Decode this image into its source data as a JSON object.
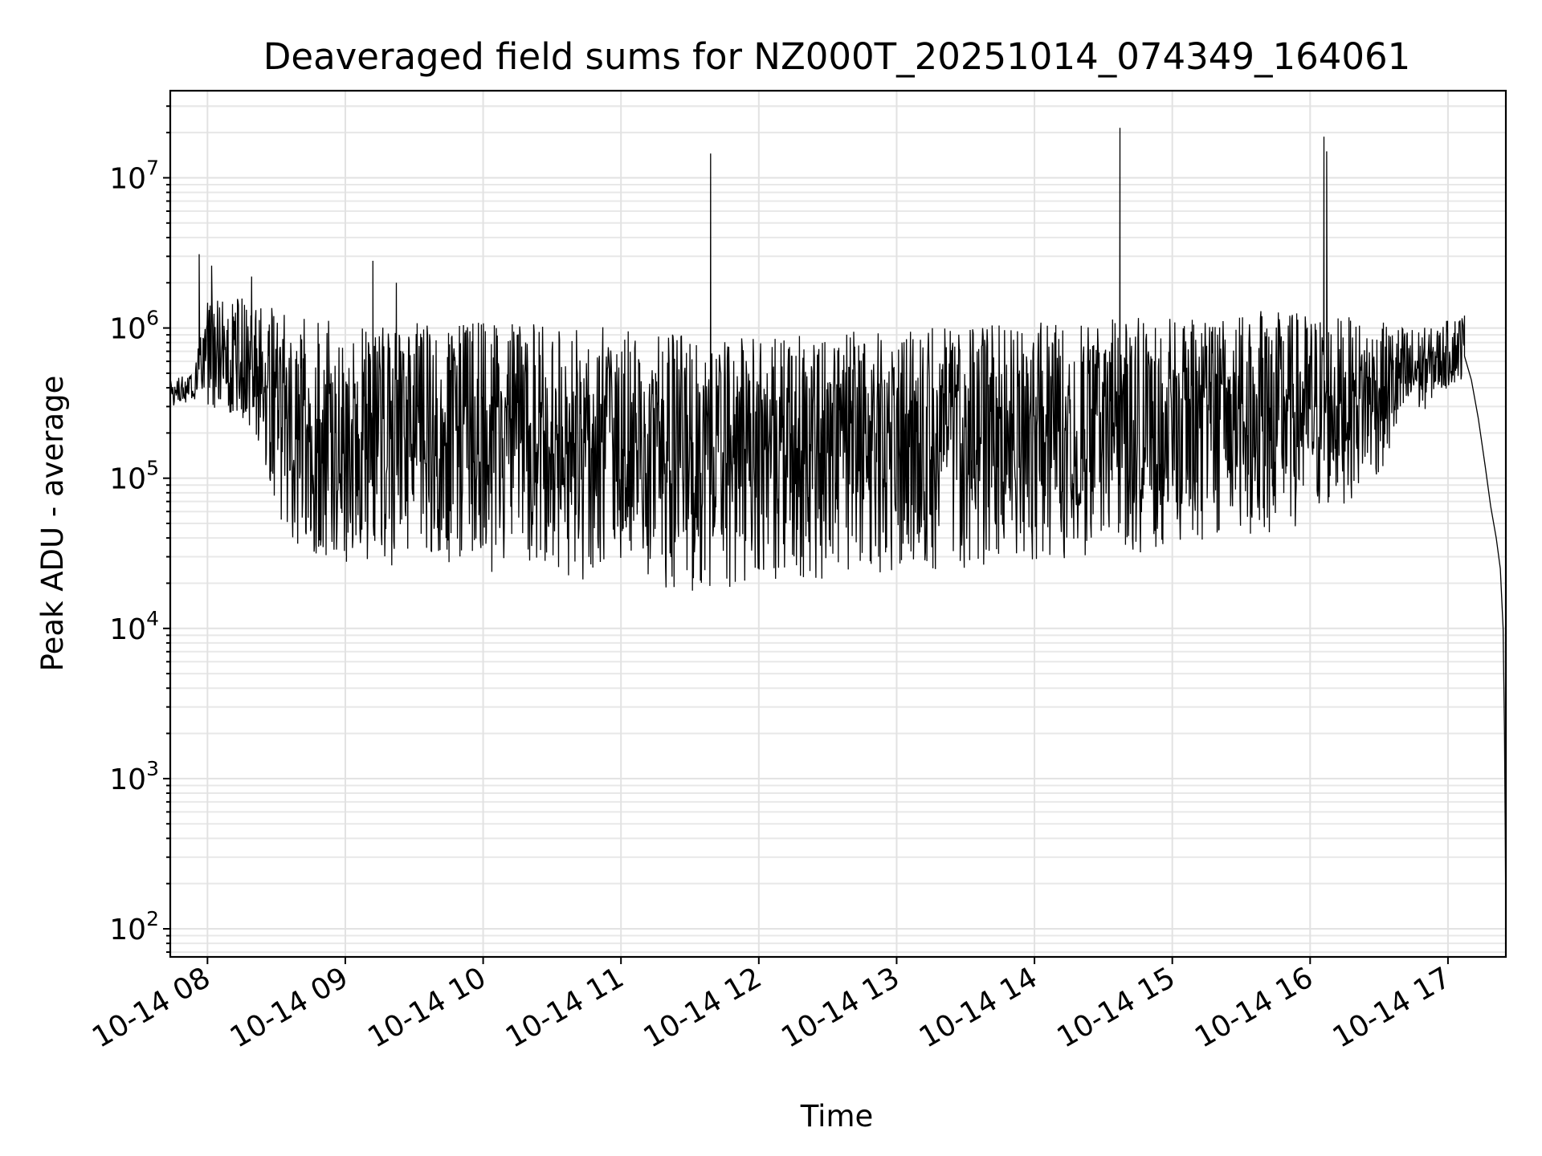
{
  "chart_data": {
    "type": "line",
    "title": "Deaveraged field sums for NZ000T_20251014_074349_164061",
    "xlabel": "Time",
    "ylabel": "Peak ADU - average",
    "yscale": "log",
    "ylim": [
      65,
      38000000
    ],
    "xlim_hours": [
      7.73,
      17.42
    ],
    "grid": true,
    "x_ticks": [
      {
        "hour": 8,
        "label": "10-14 08"
      },
      {
        "hour": 9,
        "label": "10-14 09"
      },
      {
        "hour": 10,
        "label": "10-14 10"
      },
      {
        "hour": 11,
        "label": "10-14 11"
      },
      {
        "hour": 12,
        "label": "10-14 12"
      },
      {
        "hour": 13,
        "label": "10-14 13"
      },
      {
        "hour": 14,
        "label": "10-14 14"
      },
      {
        "hour": 15,
        "label": "10-14 15"
      },
      {
        "hour": 16,
        "label": "10-14 16"
      },
      {
        "hour": 17,
        "label": "10-14 17"
      }
    ],
    "y_ticks": [
      {
        "value": 100,
        "base": "10",
        "exp": "2"
      },
      {
        "value": 1000,
        "base": "10",
        "exp": "3"
      },
      {
        "value": 10000,
        "base": "10",
        "exp": "4"
      },
      {
        "value": 100000,
        "base": "10",
        "exp": "5"
      },
      {
        "value": 1000000,
        "base": "10",
        "exp": "6"
      },
      {
        "value": 10000000,
        "base": "10",
        "exp": "7"
      }
    ],
    "series": [
      {
        "name": "deaveraged field sum",
        "color": "#000000",
        "envelope": [
          {
            "hour": 7.73,
            "low": 300000,
            "high": 450000
          },
          {
            "hour": 7.9,
            "low": 330000,
            "high": 520000
          },
          {
            "hour": 8.0,
            "low": 300000,
            "high": 1500000
          },
          {
            "hour": 8.25,
            "low": 250000,
            "high": 1600000
          },
          {
            "hour": 8.45,
            "low": 100000,
            "high": 1500000
          },
          {
            "hour": 8.6,
            "low": 30000,
            "high": 1200000
          },
          {
            "hour": 9.0,
            "low": 26000,
            "high": 1100000
          },
          {
            "hour": 10.0,
            "low": 23000,
            "high": 1100000
          },
          {
            "hour": 11.0,
            "low": 20000,
            "high": 1000000
          },
          {
            "hour": 11.5,
            "low": 17000,
            "high": 900000
          },
          {
            "hour": 12.0,
            "low": 20000,
            "high": 900000
          },
          {
            "hour": 13.0,
            "low": 22000,
            "high": 1000000
          },
          {
            "hour": 14.0,
            "low": 28000,
            "high": 1100000
          },
          {
            "hour": 15.0,
            "low": 32000,
            "high": 1200000
          },
          {
            "hour": 15.6,
            "low": 40000,
            "high": 1300000
          },
          {
            "hour": 16.0,
            "low": 45000,
            "high": 1300000
          },
          {
            "hour": 16.5,
            "low": 100000,
            "high": 1100000
          },
          {
            "hour": 16.9,
            "low": 350000,
            "high": 1000000
          },
          {
            "hour": 17.1,
            "low": 450000,
            "high": 1300000
          }
        ],
        "spikes": [
          {
            "hour": 7.94,
            "value": 3100000
          },
          {
            "hour": 8.03,
            "value": 2600000
          },
          {
            "hour": 8.32,
            "value": 2200000
          },
          {
            "hour": 9.2,
            "value": 2800000
          },
          {
            "hour": 9.37,
            "value": 2000000
          },
          {
            "hour": 11.65,
            "value": 14500000
          },
          {
            "hour": 14.62,
            "value": 21500000
          },
          {
            "hour": 16.1,
            "value": 18800000
          },
          {
            "hour": 16.12,
            "value": 15000000
          }
        ],
        "tail": [
          {
            "hour": 17.12,
            "value": 650000
          },
          {
            "hour": 17.17,
            "value": 450000
          },
          {
            "hour": 17.22,
            "value": 250000
          },
          {
            "hour": 17.27,
            "value": 120000
          },
          {
            "hour": 17.31,
            "value": 65000
          },
          {
            "hour": 17.35,
            "value": 40000
          },
          {
            "hour": 17.38,
            "value": 25000
          },
          {
            "hour": 17.4,
            "value": 10000
          },
          {
            "hour": 17.41,
            "value": 2000
          },
          {
            "hour": 17.42,
            "value": 120
          }
        ]
      }
    ]
  }
}
